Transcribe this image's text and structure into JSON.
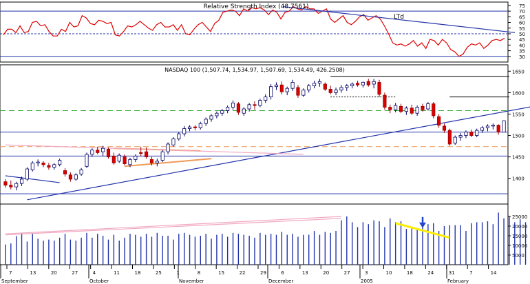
{
  "chart_data": [
    {
      "type": "line",
      "title": "Relative Strength Index (48.7561)",
      "annotation": "LTd",
      "y_ticks": [
        30,
        35,
        40,
        45,
        50,
        55,
        60,
        65,
        70,
        75
      ],
      "ylim": [
        25,
        78
      ],
      "reference_lines": [
        {
          "value": 70,
          "style": "solid"
        },
        {
          "value": 50,
          "style": "dashed"
        },
        {
          "value": 30,
          "style": "solid"
        }
      ],
      "series": [
        {
          "color": "#dd0000",
          "values": [
            49,
            54,
            54,
            51,
            57,
            51,
            52,
            60,
            61,
            57,
            58,
            52,
            48,
            48,
            54,
            52,
            60,
            56,
            57,
            66,
            64,
            59,
            58,
            62,
            61,
            59,
            60,
            49,
            48,
            52,
            57,
            56,
            58,
            61,
            58,
            55,
            53,
            58,
            60,
            56,
            56,
            58,
            53,
            58,
            50,
            49,
            54,
            58,
            60,
            56,
            52,
            59,
            62,
            69,
            70,
            71,
            70,
            66,
            72,
            70,
            73,
            72,
            73,
            71,
            67,
            71,
            69,
            63,
            69,
            70,
            74,
            72,
            71,
            74,
            72,
            72,
            68,
            70,
            72,
            63,
            60,
            63,
            66,
            60,
            58,
            61,
            65,
            67,
            62,
            64,
            66,
            63,
            57,
            50,
            42,
            40,
            41,
            39,
            41,
            44,
            39,
            42,
            37,
            45,
            44,
            40,
            45,
            42,
            36,
            34,
            30,
            32,
            38,
            41,
            40,
            42,
            37,
            40,
            44,
            45,
            44,
            46
          ]
        }
      ],
      "trendline_label": "LTd",
      "trendline": {
        "color": "#2233aa",
        "from": {
          "i": 68,
          "v": 74
        },
        "to": {
          "i": 124,
          "v": 51
        }
      }
    },
    {
      "type": "candlestick",
      "title": "NASDAQ 100 (1,507.74, 1,534.97, 1,507.69, 1,534.49, 426.2508)",
      "y_ticks": [
        1400,
        1450,
        1500,
        1550,
        1600,
        1650
      ],
      "ylim": [
        1340,
        1665
      ],
      "x_tick_labels": [
        "7",
        "13",
        "20",
        "27",
        "4",
        "11",
        "18",
        "25",
        "1",
        "8",
        "15",
        "22",
        "29",
        "6",
        "13",
        "20",
        "27",
        "3",
        "10",
        "18",
        "24",
        "31",
        "7",
        "14"
      ],
      "month_labels": [
        "September",
        "October",
        "November",
        "December",
        "2005",
        "February"
      ],
      "horizontal_lines": [
        {
          "value": 1558,
          "color": "#33aa33",
          "style": "dashed"
        },
        {
          "value": 1508,
          "color": "#2233aa",
          "style": "solid"
        },
        {
          "value": 1474,
          "color": "#ee9955",
          "style": "dashed"
        },
        {
          "value": 1452,
          "color": "#2233aa",
          "style": "solid"
        },
        {
          "value": 1364,
          "color": "#2233aa",
          "style": "solid"
        }
      ],
      "candles": [
        {
          "o": 1392,
          "h": 1398,
          "l": 1378,
          "c": 1384
        },
        {
          "o": 1384,
          "h": 1395,
          "l": 1374,
          "c": 1380
        },
        {
          "o": 1380,
          "h": 1392,
          "l": 1372,
          "c": 1388
        },
        {
          "o": 1388,
          "h": 1404,
          "l": 1382,
          "c": 1398
        },
        {
          "o": 1398,
          "h": 1426,
          "l": 1394,
          "c": 1422
        },
        {
          "o": 1420,
          "h": 1440,
          "l": 1416,
          "c": 1436
        },
        {
          "o": 1436,
          "h": 1444,
          "l": 1428,
          "c": 1438
        },
        {
          "o": 1436,
          "h": 1440,
          "l": 1426,
          "c": 1432
        },
        {
          "o": 1430,
          "h": 1436,
          "l": 1420,
          "c": 1426
        },
        {
          "o": 1426,
          "h": 1436,
          "l": 1420,
          "c": 1432
        },
        {
          "o": 1432,
          "h": 1446,
          "l": 1428,
          "c": 1442
        },
        {
          "o": 1418,
          "h": 1424,
          "l": 1404,
          "c": 1410
        },
        {
          "o": 1408,
          "h": 1414,
          "l": 1392,
          "c": 1398
        },
        {
          "o": 1398,
          "h": 1412,
          "l": 1394,
          "c": 1408
        },
        {
          "o": 1410,
          "h": 1424,
          "l": 1406,
          "c": 1420
        },
        {
          "o": 1428,
          "h": 1460,
          "l": 1424,
          "c": 1456
        },
        {
          "o": 1456,
          "h": 1470,
          "l": 1450,
          "c": 1466
        },
        {
          "o": 1466,
          "h": 1474,
          "l": 1456,
          "c": 1460
        },
        {
          "o": 1462,
          "h": 1476,
          "l": 1452,
          "c": 1470
        },
        {
          "o": 1468,
          "h": 1472,
          "l": 1446,
          "c": 1450
        },
        {
          "o": 1452,
          "h": 1460,
          "l": 1432,
          "c": 1436
        },
        {
          "o": 1440,
          "h": 1458,
          "l": 1436,
          "c": 1454
        },
        {
          "o": 1450,
          "h": 1456,
          "l": 1430,
          "c": 1434
        },
        {
          "o": 1432,
          "h": 1448,
          "l": 1426,
          "c": 1444
        },
        {
          "o": 1444,
          "h": 1456,
          "l": 1438,
          "c": 1452
        },
        {
          "o": 1460,
          "h": 1474,
          "l": 1452,
          "c": 1458
        },
        {
          "o": 1462,
          "h": 1472,
          "l": 1446,
          "c": 1450
        },
        {
          "o": 1444,
          "h": 1450,
          "l": 1430,
          "c": 1436
        },
        {
          "o": 1436,
          "h": 1446,
          "l": 1428,
          "c": 1440
        },
        {
          "o": 1442,
          "h": 1466,
          "l": 1438,
          "c": 1462
        },
        {
          "o": 1462,
          "h": 1484,
          "l": 1456,
          "c": 1480
        },
        {
          "o": 1478,
          "h": 1496,
          "l": 1474,
          "c": 1492
        },
        {
          "o": 1492,
          "h": 1508,
          "l": 1488,
          "c": 1504
        },
        {
          "o": 1504,
          "h": 1522,
          "l": 1498,
          "c": 1516
        },
        {
          "o": 1516,
          "h": 1524,
          "l": 1510,
          "c": 1520
        },
        {
          "o": 1520,
          "h": 1524,
          "l": 1512,
          "c": 1518
        },
        {
          "o": 1518,
          "h": 1532,
          "l": 1514,
          "c": 1528
        },
        {
          "o": 1528,
          "h": 1542,
          "l": 1522,
          "c": 1538
        },
        {
          "o": 1538,
          "h": 1550,
          "l": 1532,
          "c": 1546
        },
        {
          "o": 1546,
          "h": 1556,
          "l": 1540,
          "c": 1552
        },
        {
          "o": 1552,
          "h": 1562,
          "l": 1546,
          "c": 1558
        },
        {
          "o": 1558,
          "h": 1570,
          "l": 1552,
          "c": 1566
        },
        {
          "o": 1566,
          "h": 1582,
          "l": 1560,
          "c": 1576
        },
        {
          "o": 1574,
          "h": 1578,
          "l": 1548,
          "c": 1554
        },
        {
          "o": 1552,
          "h": 1566,
          "l": 1546,
          "c": 1562
        },
        {
          "o": 1562,
          "h": 1576,
          "l": 1556,
          "c": 1572
        },
        {
          "o": 1572,
          "h": 1580,
          "l": 1560,
          "c": 1570
        },
        {
          "o": 1570,
          "h": 1586,
          "l": 1566,
          "c": 1582
        },
        {
          "o": 1582,
          "h": 1596,
          "l": 1576,
          "c": 1590
        },
        {
          "o": 1590,
          "h": 1620,
          "l": 1584,
          "c": 1614
        },
        {
          "o": 1614,
          "h": 1624,
          "l": 1606,
          "c": 1618
        },
        {
          "o": 1618,
          "h": 1626,
          "l": 1596,
          "c": 1602
        },
        {
          "o": 1602,
          "h": 1614,
          "l": 1594,
          "c": 1610
        },
        {
          "o": 1610,
          "h": 1630,
          "l": 1604,
          "c": 1624
        },
        {
          "o": 1612,
          "h": 1618,
          "l": 1588,
          "c": 1594
        },
        {
          "o": 1594,
          "h": 1610,
          "l": 1590,
          "c": 1606
        },
        {
          "o": 1606,
          "h": 1620,
          "l": 1600,
          "c": 1616
        },
        {
          "o": 1616,
          "h": 1628,
          "l": 1610,
          "c": 1622
        },
        {
          "o": 1622,
          "h": 1632,
          "l": 1614,
          "c": 1626
        },
        {
          "o": 1620,
          "h": 1624,
          "l": 1604,
          "c": 1608
        },
        {
          "o": 1608,
          "h": 1616,
          "l": 1596,
          "c": 1600
        },
        {
          "o": 1600,
          "h": 1612,
          "l": 1594,
          "c": 1606
        },
        {
          "o": 1606,
          "h": 1618,
          "l": 1600,
          "c": 1612
        },
        {
          "o": 1612,
          "h": 1620,
          "l": 1604,
          "c": 1616
        },
        {
          "o": 1616,
          "h": 1624,
          "l": 1610,
          "c": 1620
        },
        {
          "o": 1622,
          "h": 1628,
          "l": 1614,
          "c": 1618
        },
        {
          "o": 1618,
          "h": 1626,
          "l": 1612,
          "c": 1624
        },
        {
          "o": 1626,
          "h": 1632,
          "l": 1614,
          "c": 1618
        },
        {
          "o": 1620,
          "h": 1632,
          "l": 1610,
          "c": 1626
        },
        {
          "o": 1624,
          "h": 1630,
          "l": 1590,
          "c": 1596
        },
        {
          "o": 1594,
          "h": 1600,
          "l": 1560,
          "c": 1566
        },
        {
          "o": 1566,
          "h": 1572,
          "l": 1552,
          "c": 1560
        },
        {
          "o": 1560,
          "h": 1576,
          "l": 1554,
          "c": 1570
        },
        {
          "o": 1568,
          "h": 1574,
          "l": 1552,
          "c": 1556
        },
        {
          "o": 1556,
          "h": 1568,
          "l": 1548,
          "c": 1564
        },
        {
          "o": 1564,
          "h": 1572,
          "l": 1548,
          "c": 1552
        },
        {
          "o": 1552,
          "h": 1570,
          "l": 1546,
          "c": 1566
        },
        {
          "o": 1568,
          "h": 1574,
          "l": 1556,
          "c": 1560
        },
        {
          "o": 1562,
          "h": 1578,
          "l": 1558,
          "c": 1574
        },
        {
          "o": 1574,
          "h": 1578,
          "l": 1540,
          "c": 1546
        },
        {
          "o": 1544,
          "h": 1550,
          "l": 1518,
          "c": 1524
        },
        {
          "o": 1522,
          "h": 1528,
          "l": 1506,
          "c": 1512
        },
        {
          "o": 1512,
          "h": 1516,
          "l": 1476,
          "c": 1480
        },
        {
          "o": 1482,
          "h": 1500,
          "l": 1478,
          "c": 1496
        },
        {
          "o": 1496,
          "h": 1506,
          "l": 1488,
          "c": 1500
        },
        {
          "o": 1500,
          "h": 1512,
          "l": 1494,
          "c": 1508
        },
        {
          "o": 1508,
          "h": 1514,
          "l": 1496,
          "c": 1500
        },
        {
          "o": 1500,
          "h": 1516,
          "l": 1496,
          "c": 1512
        },
        {
          "o": 1512,
          "h": 1522,
          "l": 1506,
          "c": 1518
        },
        {
          "o": 1518,
          "h": 1526,
          "l": 1510,
          "c": 1522
        },
        {
          "o": 1522,
          "h": 1528,
          "l": 1514,
          "c": 1524
        },
        {
          "o": 1524,
          "h": 1526,
          "l": 1502,
          "c": 1508
        },
        {
          "o": 1507.74,
          "h": 1534.97,
          "l": 1507.69,
          "c": 1534.49
        }
      ],
      "overlay_lines": [
        {
          "color": "#2233aa",
          "from": {
            "i": 4,
            "v": 1350
          },
          "to": {
            "i": 130,
            "v": 1644
          }
        },
        {
          "color": "#2233aa",
          "from": {
            "i": 0,
            "v": 1406
          },
          "to": {
            "i": 10,
            "v": 1390
          }
        },
        {
          "color": "#ee9955",
          "from": {
            "i": 20,
            "v": 1470
          },
          "to": {
            "i": 36,
            "v": 1464
          }
        },
        {
          "color": "#ee9955",
          "from": {
            "i": 22,
            "v": 1428
          },
          "to": {
            "i": 38,
            "v": 1446
          }
        },
        {
          "color": "#f0a8c0",
          "from": {
            "i": 0,
            "v": 1478
          },
          "to": {
            "i": 55,
            "v": 1456
          }
        }
      ],
      "resistance_segments": [
        {
          "color": "#000000",
          "style": "solid",
          "from": {
            "i": 60,
            "v": 1638
          },
          "to": {
            "i": 93,
            "v": 1638
          }
        },
        {
          "color": "#000000",
          "style": "dashed",
          "from": {
            "i": 60,
            "v": 1590
          },
          "to": {
            "i": 72,
            "v": 1590
          }
        },
        {
          "color": "#000000",
          "style": "solid",
          "from": {
            "i": 82,
            "v": 1590
          },
          "to": {
            "i": 93,
            "v": 1590
          }
        }
      ]
    },
    {
      "type": "bar",
      "y_ticks": [
        5000,
        10000,
        15000,
        20000,
        25000
      ],
      "ylim": [
        0,
        30000
      ],
      "values": [
        10500,
        11000,
        14800,
        16500,
        12000,
        16000,
        13500,
        12500,
        13000,
        12500,
        14000,
        16000,
        13000,
        12500,
        14000,
        16500,
        14000,
        16000,
        15000,
        13000,
        15500,
        12500,
        14000,
        16000,
        15500,
        14500,
        16000,
        14500,
        16500,
        15000,
        15000,
        13000,
        16000,
        16500,
        15500,
        14500,
        15000,
        16000,
        13500,
        15500,
        16000,
        14500,
        16500,
        16000,
        15500,
        15000,
        14000,
        16500,
        15500,
        16000,
        15500,
        17000,
        15500,
        16000,
        14500,
        15500,
        15500,
        17500,
        15500,
        17000,
        16500,
        17500,
        23000,
        25000,
        22000,
        19500,
        22000,
        21000,
        23000,
        22500,
        19500,
        24000,
        22000,
        22500,
        18500,
        19000,
        18500,
        20000,
        21000,
        21500,
        17500,
        20000,
        20500,
        20500,
        20500,
        17500,
        21500,
        22000,
        22000,
        22500,
        21000,
        27000,
        24000,
        25000,
        22000,
        23500,
        22000,
        23000,
        23500,
        22000,
        21000,
        23000,
        22000,
        22500,
        22000
      ],
      "overlays": [
        {
          "color": "#f0a8c0",
          "from": {
            "i": 0,
            "v": 15500
          },
          "to": {
            "i": 62,
            "v": 24000
          }
        },
        {
          "color": "#f0a8c0",
          "from": {
            "i": 0,
            "v": 16000
          },
          "to": {
            "i": 62,
            "v": 25000
          }
        },
        {
          "color": "#ffee00",
          "from": {
            "i": 72,
            "v": 21500
          },
          "to": {
            "i": 82,
            "v": 14000
          }
        }
      ],
      "arrow": {
        "color": "#2244cc",
        "i": 77,
        "v": 19000
      }
    }
  ]
}
